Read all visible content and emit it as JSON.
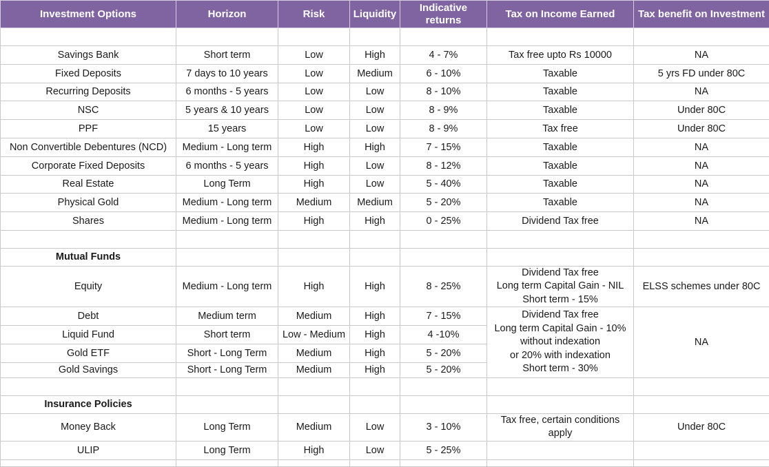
{
  "header": [
    "Investment Options",
    "Horizon",
    "Risk",
    "Liquidity",
    "Indicative returns",
    "Tax on Income Earned",
    "Tax benefit on Investment"
  ],
  "general": [
    {
      "name": "Savings Bank",
      "horizon": "Short term",
      "risk": "Low",
      "liquidity": "High",
      "returns": "4 - 7%",
      "tax_income": "Tax free upto Rs 10000",
      "tax_benefit": "NA"
    },
    {
      "name": "Fixed Deposits",
      "horizon": "7 days to 10 years",
      "risk": "Low",
      "liquidity": "Medium",
      "returns": "6 - 10%",
      "tax_income": "Taxable",
      "tax_benefit": "5 yrs FD under 80C"
    },
    {
      "name": "Recurring Deposits",
      "horizon": "6 months - 5 years",
      "risk": "Low",
      "liquidity": "Low",
      "returns": "8 - 10%",
      "tax_income": "Taxable",
      "tax_benefit": "NA"
    },
    {
      "name": "NSC",
      "horizon": "5 years & 10 years",
      "risk": "Low",
      "liquidity": "Low",
      "returns": "8 - 9%",
      "tax_income": "Taxable",
      "tax_benefit": "Under 80C"
    },
    {
      "name": "PPF",
      "horizon": "15 years",
      "risk": "Low",
      "liquidity": "Low",
      "returns": "8 - 9%",
      "tax_income": "Tax free",
      "tax_benefit": "Under 80C"
    },
    {
      "name": "Non Convertible Debentures (NCD)",
      "horizon": "Medium - Long term",
      "risk": "High",
      "liquidity": "High",
      "returns": "7 - 15%",
      "tax_income": "Taxable",
      "tax_benefit": "NA"
    },
    {
      "name": "Corporate Fixed Deposits",
      "horizon": "6 months - 5 years",
      "risk": "High",
      "liquidity": "Low",
      "returns": "8 - 12%",
      "tax_income": "Taxable",
      "tax_benefit": "NA"
    },
    {
      "name": "Real Estate",
      "horizon": "Long Term",
      "risk": "High",
      "liquidity": "Low",
      "returns": "5 - 40%",
      "tax_income": "Taxable",
      "tax_benefit": "NA"
    },
    {
      "name": "Physical Gold",
      "horizon": "Medium - Long term",
      "risk": "Medium",
      "liquidity": "Medium",
      "returns": "5 - 20%",
      "tax_income": "Taxable",
      "tax_benefit": "NA"
    },
    {
      "name": "Shares",
      "horizon": "Medium - Long term",
      "risk": "High",
      "liquidity": "High",
      "returns": "0 - 25%",
      "tax_income": "Dividend Tax free",
      "tax_benefit": "NA"
    }
  ],
  "mutual_funds": {
    "title": "Mutual Funds",
    "equity": {
      "name": "Equity",
      "horizon": "Medium - Long term",
      "risk": "High",
      "liquidity": "High",
      "returns": "8 - 25%",
      "tax_income": [
        "Dividend Tax free",
        "Long term Capital Gain - NIL",
        "Short term - 15%"
      ],
      "tax_benefit": "ELSS schemes under 80C"
    },
    "others": [
      {
        "name": "Debt",
        "horizon": "Medium term",
        "risk": "Medium",
        "liquidity": "High",
        "returns": "7 - 15%"
      },
      {
        "name": "Liquid Fund",
        "horizon": "Short term",
        "risk": "Low - Medium",
        "liquidity": "High",
        "returns": "4 -10%"
      },
      {
        "name": "Gold ETF",
        "horizon": "Short - Long Term",
        "risk": "Medium",
        "liquidity": "High",
        "returns": "5 - 20%"
      },
      {
        "name": "Gold Savings",
        "horizon": "Short - Long Term",
        "risk": "Medium",
        "liquidity": "High",
        "returns": "5 - 20%"
      }
    ],
    "others_tax_income": [
      "Dividend Tax free",
      "Long term Capital Gain - 10%",
      "without indexation",
      "or 20% with indexation",
      "Short term - 30%"
    ],
    "others_tax_benefit": "NA"
  },
  "insurance": {
    "title": "Insurance Policies",
    "rows": [
      {
        "name": "Money Back",
        "horizon": "Long Term",
        "risk": "Medium",
        "liquidity": "Low",
        "returns": "3 - 10%"
      },
      {
        "name": "ULIP",
        "horizon": "Long Term",
        "risk": "High",
        "liquidity": "Low",
        "returns": "5 - 25%"
      }
    ],
    "tax_income": [
      "Tax free, certain conditions",
      "apply"
    ],
    "tax_benefit": "Under 80C"
  }
}
